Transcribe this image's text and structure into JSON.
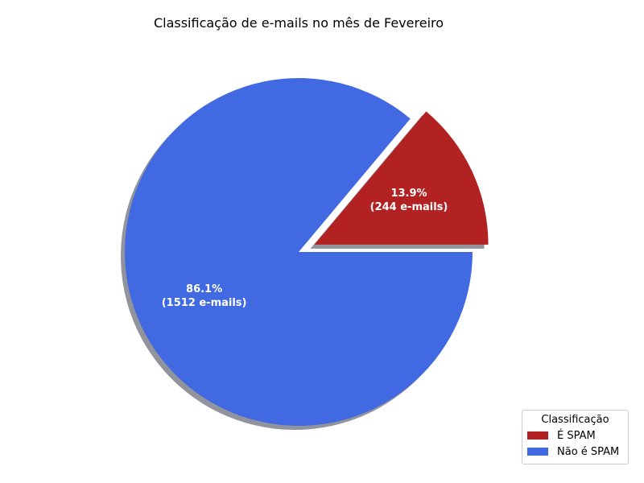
{
  "chart_data": {
    "type": "pie",
    "title": "Classificação de e-mails no mês de Fevereiro",
    "slices": [
      {
        "label": "É SPAM",
        "value": 244,
        "percent": 13.9,
        "color": "#b22222",
        "exploded": true,
        "data_label": [
          "13.9%",
          "(244 e-mails)"
        ]
      },
      {
        "label": "Não é SPAM",
        "value": 1512,
        "percent": 86.1,
        "color": "#4169e1",
        "exploded": false,
        "data_label": [
          "86.1%",
          "(1512 e-mails)"
        ]
      }
    ],
    "shadow": true,
    "legend": {
      "title": "Classificação",
      "placement": "bottom-right"
    }
  }
}
